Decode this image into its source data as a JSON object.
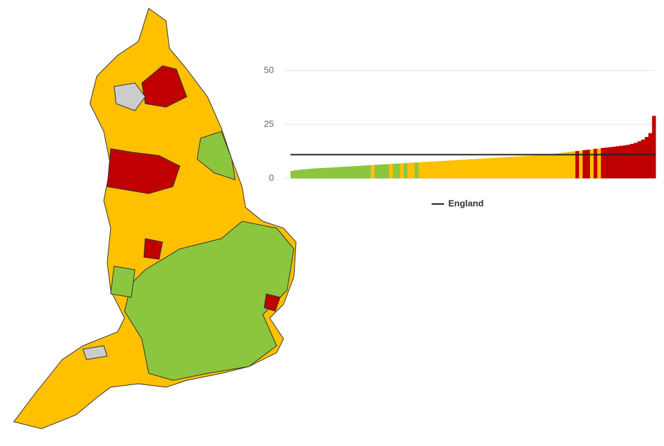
{
  "chart_data": {
    "type": "bar",
    "values": [
      3.5,
      3.8,
      4.0,
      4.2,
      4.3,
      4.5,
      4.6,
      4.7,
      4.8,
      4.9,
      5.0,
      5.1,
      5.2,
      5.3,
      5.4,
      5.5,
      5.6,
      5.7,
      5.8,
      5.9,
      6.0,
      6.1,
      6.2,
      6.3,
      6.4,
      6.5,
      6.6,
      6.7,
      6.8,
      6.9,
      7.0,
      7.1,
      7.2,
      7.3,
      7.4,
      7.5,
      7.6,
      7.7,
      7.8,
      7.9,
      8.0,
      8.1,
      8.2,
      8.3,
      8.4,
      8.5,
      8.6,
      8.7,
      8.8,
      8.9,
      9.0,
      9.1,
      9.2,
      9.3,
      9.4,
      9.5,
      9.6,
      9.7,
      9.8,
      9.9,
      10.0,
      10.1,
      10.2,
      10.3,
      10.4,
      10.5,
      10.6,
      10.7,
      10.8,
      10.9,
      11.1,
      11.3,
      11.5,
      11.7,
      11.9,
      12.1,
      12.3,
      12.5,
      12.7,
      12.9,
      13.1,
      13.3,
      13.5,
      13.7,
      13.9,
      14.1,
      14.3,
      14.5,
      14.7,
      14.9,
      15.1,
      15.3,
      15.6,
      16.0,
      16.5,
      17.2,
      18.0,
      19.2,
      21.0,
      29.0
    ],
    "colors": [
      "#8cc63f",
      "#8cc63f",
      "#8cc63f",
      "#8cc63f",
      "#8cc63f",
      "#8cc63f",
      "#8cc63f",
      "#8cc63f",
      "#8cc63f",
      "#8cc63f",
      "#8cc63f",
      "#8cc63f",
      "#8cc63f",
      "#8cc63f",
      "#8cc63f",
      "#8cc63f",
      "#8cc63f",
      "#8cc63f",
      "#8cc63f",
      "#8cc63f",
      "#8cc63f",
      "#8cc63f",
      "#ffc000",
      "#8cc63f",
      "#8cc63f",
      "#8cc63f",
      "#8cc63f",
      "#ffc000",
      "#8cc63f",
      "#8cc63f",
      "#ffc000",
      "#8cc63f",
      "#ffc000",
      "#ffc000",
      "#8cc63f",
      "#ffc000",
      "#ffc000",
      "#ffc000",
      "#ffc000",
      "#ffc000",
      "#ffc000",
      "#ffc000",
      "#ffc000",
      "#ffc000",
      "#ffc000",
      "#ffc000",
      "#ffc000",
      "#ffc000",
      "#ffc000",
      "#ffc000",
      "#ffc000",
      "#ffc000",
      "#ffc000",
      "#ffc000",
      "#ffc000",
      "#ffc000",
      "#ffc000",
      "#ffc000",
      "#ffc000",
      "#ffc000",
      "#ffc000",
      "#ffc000",
      "#ffc000",
      "#ffc000",
      "#ffc000",
      "#ffc000",
      "#ffc000",
      "#ffc000",
      "#ffc000",
      "#ffc000",
      "#ffc000",
      "#ffc000",
      "#ffc000",
      "#ffc000",
      "#ffc000",
      "#ffc000",
      "#ffc000",
      "#ffc000",
      "#c00000",
      "#ffc000",
      "#c00000",
      "#c00000",
      "#ffc000",
      "#c00000",
      "#ffc000",
      "#c00000",
      "#c00000",
      "#c00000",
      "#c00000",
      "#c00000",
      "#c00000",
      "#c00000",
      "#c00000",
      "#c00000",
      "#c00000",
      "#c00000",
      "#c00000",
      "#c00000",
      "#c00000",
      "#c00000"
    ],
    "reference": {
      "name": "England",
      "value": 11,
      "color": "#222222"
    },
    "ylim": [
      0,
      50
    ],
    "yticks": [
      0,
      25,
      50
    ],
    "grid": true
  }
}
